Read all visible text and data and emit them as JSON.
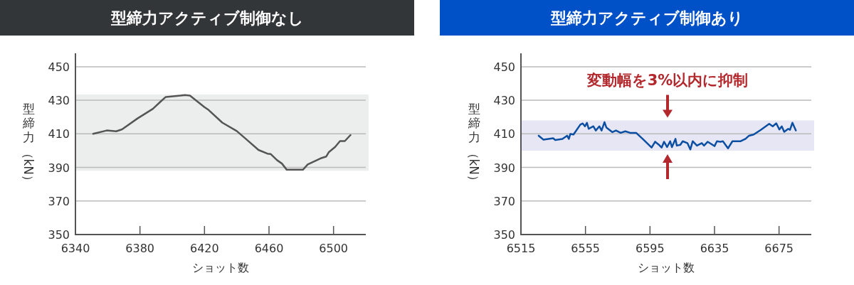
{
  "chart_data": [
    {
      "type": "line",
      "title": "型締力アクティブ制御なし",
      "xlabel": "ショット数",
      "ylabel": "型締力（kN）",
      "xlim": [
        6340,
        6520
      ],
      "ylim": [
        350,
        458
      ],
      "xticks": [
        6340,
        6380,
        6420,
        6460,
        6500
      ],
      "yticks": [
        350,
        370,
        390,
        410,
        430,
        450
      ],
      "grid": "y",
      "bands": [
        {
          "axis": "y",
          "from": 388,
          "to": 433.5,
          "color": "#eceded"
        }
      ],
      "series": [
        {
          "color": "#555555",
          "x": [
            6351,
            6359.4,
            6365.3,
            6368.9,
            6378.5,
            6388,
            6393,
            6396,
            6408,
            6411,
            6420,
            6422.6,
            6431,
            6440,
            6446,
            6453.5,
            6459,
            6461,
            6465,
            6468,
            6471,
            6481,
            6484,
            6492,
            6495.5,
            6497,
            6501,
            6504,
            6507,
            6510.5
          ],
          "values": [
            410,
            412,
            411.5,
            412.7,
            419.2,
            424.9,
            429.4,
            432,
            433.1,
            432.8,
            425.9,
            424.2,
            416.7,
            411.7,
            406.7,
            400.4,
            398.2,
            398,
            394.3,
            392.3,
            388.6,
            388.6,
            391.8,
            395.4,
            396.5,
            399,
            402.2,
            405.7,
            405.7,
            409.3
          ]
        }
      ]
    },
    {
      "type": "line",
      "title": "型締力アクティブ制御あり",
      "xlabel": "ショット数",
      "ylabel": "型締力（kN）",
      "xlim": [
        6515,
        6695
      ],
      "ylim": [
        350,
        458
      ],
      "xticks": [
        6515,
        6555,
        6595,
        6635,
        6675
      ],
      "yticks": [
        350,
        370,
        390,
        410,
        430,
        450
      ],
      "grid": "y",
      "bands": [
        {
          "axis": "y",
          "from": 400,
          "to": 418,
          "color": "#e6e6f4",
          "label": "変動幅を3%以内に抑制"
        }
      ],
      "series": [
        {
          "color": "#0b4ea2",
          "x": [
            6526,
            6529,
            6535,
            6536.3,
            6540.7,
            6543.6,
            6544.7,
            6545.6,
            6547.6,
            6551.8,
            6553.3,
            6554.7,
            6555.9,
            6557,
            6559.9,
            6561.4,
            6563.6,
            6565,
            6566.8,
            6568,
            6571.7,
            6573.9,
            6576.8,
            6579.7,
            6582.7,
            6586.4,
            6590.8,
            6596,
            6598.2,
            6600.4,
            6602.2,
            6603.7,
            6605.6,
            6607.5,
            6608.6,
            6610.8,
            6611.6,
            6613.8,
            6615.3,
            6618.2,
            6620,
            6621.5,
            6624.1,
            6627.1,
            6628.5,
            6630.8,
            6635,
            6636.5,
            6638.7,
            6640.2,
            6643.4,
            6646.1,
            6651.2,
            6654.2,
            6656.4,
            6659.3,
            6663.7,
            6668.9,
            6671.1,
            6673.3,
            6675.2,
            6676.7,
            6678.2,
            6680.7,
            6681.8,
            6683.3,
            6685.4
          ],
          "values": [
            408.9,
            406.5,
            407.4,
            406.3,
            407,
            408.9,
            407,
            409.9,
            409.6,
            415.5,
            416.2,
            414.5,
            416.6,
            413,
            414.5,
            412,
            414.5,
            412,
            417,
            413.7,
            411,
            412,
            410.6,
            411.5,
            410.6,
            410.6,
            406.7,
            401.8,
            405.3,
            403.6,
            401.8,
            405.3,
            402.1,
            405.6,
            402.1,
            407,
            403,
            403.5,
            405.6,
            404.5,
            400.7,
            405.6,
            403,
            404.5,
            403,
            405.3,
            402.7,
            405.6,
            405.3,
            405.6,
            401.4,
            405.6,
            405.6,
            407,
            408.9,
            409.6,
            412.4,
            416,
            414.5,
            416.3,
            412.6,
            414.5,
            411.2,
            413,
            412.4,
            416.6,
            412
          ]
        }
      ]
    }
  ]
}
